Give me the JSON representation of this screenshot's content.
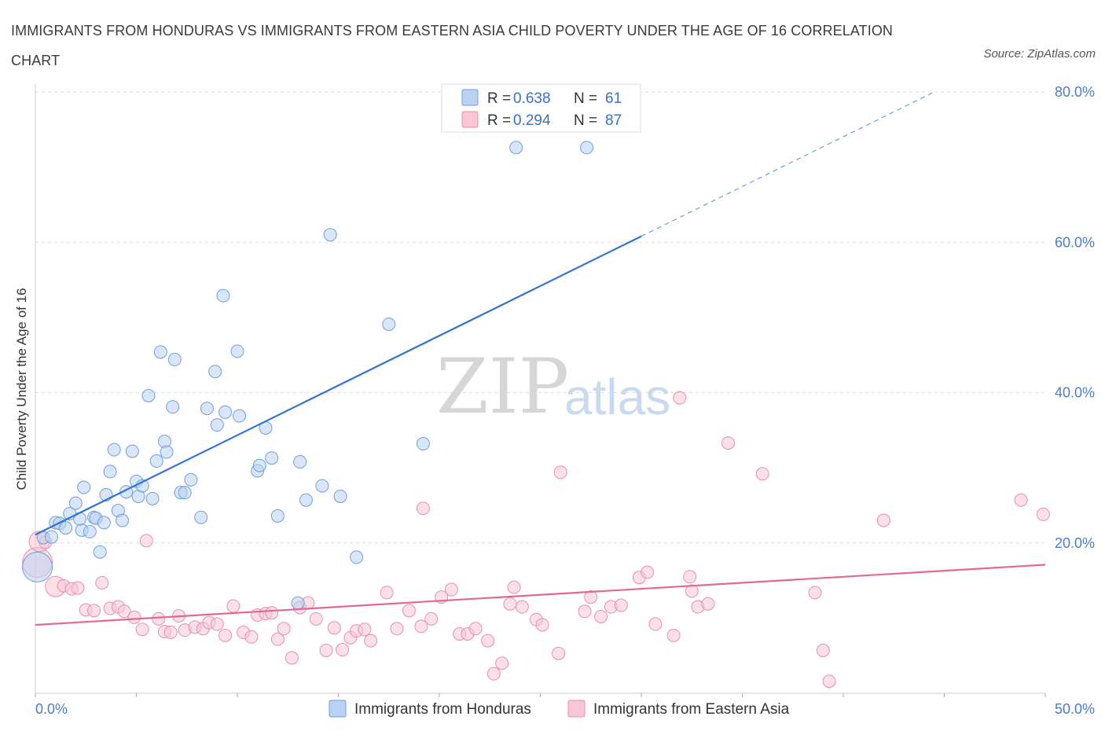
{
  "title": "IMMIGRANTS FROM HONDURAS VS IMMIGRANTS FROM EASTERN ASIA CHILD POVERTY UNDER THE AGE OF 16 CORRELATION CHART",
  "source": "Source: ZipAtlas.com",
  "watermark": {
    "zip": "ZIP",
    "atlas": "atlas"
  },
  "legend": {
    "r_label": "R =",
    "n_label": "N =",
    "rows": [
      {
        "r": "0.638",
        "n": "61"
      },
      {
        "r": "0.294",
        "n": "87"
      }
    ]
  },
  "colors": {
    "honduras_fill": "#b9d2f3",
    "honduras_stroke": "#6f9fdc",
    "honduras_line": "#2f74cf",
    "asia_fill": "#f8c6d5",
    "asia_stroke": "#e88fab",
    "asia_line": "#e06a93",
    "grid": "#dddddd",
    "tick_label": "#4a7cc9"
  },
  "chart_data": {
    "type": "scatter",
    "xlabel": "",
    "ylabel": "Child Poverty Under the Age of 16",
    "xlim": [
      0,
      50
    ],
    "ylim": [
      0,
      80
    ],
    "x_tick_labels": [
      {
        "value": 0,
        "label": "0.0%"
      },
      {
        "value": 50,
        "label": "50.0%"
      }
    ],
    "y_tick_labels": [
      {
        "value": 20,
        "label": "20.0%"
      },
      {
        "value": 40,
        "label": "40.0%"
      },
      {
        "value": 60,
        "label": "60.0%"
      },
      {
        "value": 80,
        "label": "80.0%"
      }
    ],
    "grid": "horizontal dashed",
    "legend_placement": "top-center",
    "series": [
      {
        "name": "Immigrants from Honduras",
        "r": 0.638,
        "n": 61,
        "trend": {
          "x0": 0,
          "y0": 21.1,
          "x1": 30,
          "y1": 60.8,
          "dash_to_x": 44.5,
          "dash_to_y": 80
        },
        "points": [
          [
            0.1,
            16.8,
            3
          ],
          [
            0.4,
            20.7,
            1
          ],
          [
            0.8,
            20.8,
            1
          ],
          [
            1.0,
            22.7,
            1
          ],
          [
            1.2,
            22.6,
            1
          ],
          [
            1.5,
            22.0,
            1
          ],
          [
            1.7,
            23.9,
            1
          ],
          [
            2.0,
            25.3,
            1
          ],
          [
            2.3,
            21.7,
            1
          ],
          [
            2.4,
            27.4,
            1
          ],
          [
            2.7,
            21.5,
            1
          ],
          [
            2.9,
            23.4,
            1
          ],
          [
            3.0,
            23.3,
            1
          ],
          [
            3.2,
            18.8,
            1
          ],
          [
            3.5,
            26.4,
            1
          ],
          [
            3.7,
            29.5,
            1
          ],
          [
            3.9,
            32.4,
            1
          ],
          [
            4.1,
            24.3,
            1
          ],
          [
            4.3,
            23.0,
            1
          ],
          [
            4.5,
            26.8,
            1
          ],
          [
            4.8,
            32.2,
            1
          ],
          [
            5.0,
            28.2,
            1
          ],
          [
            5.1,
            26.2,
            1
          ],
          [
            5.3,
            27.6,
            1
          ],
          [
            5.6,
            39.6,
            1
          ],
          [
            5.8,
            25.9,
            1
          ],
          [
            6.0,
            30.9,
            1
          ],
          [
            6.2,
            45.4,
            1
          ],
          [
            6.4,
            33.5,
            1
          ],
          [
            6.5,
            32.1,
            1
          ],
          [
            6.8,
            38.1,
            1
          ],
          [
            6.9,
            44.4,
            1
          ],
          [
            7.2,
            26.7,
            1
          ],
          [
            7.4,
            26.7,
            1
          ],
          [
            7.7,
            28.4,
            1
          ],
          [
            8.2,
            23.4,
            1
          ],
          [
            8.5,
            37.9,
            1
          ],
          [
            8.9,
            42.8,
            1
          ],
          [
            9.0,
            35.7,
            1
          ],
          [
            9.3,
            52.9,
            1
          ],
          [
            9.4,
            37.4,
            1
          ],
          [
            10.0,
            45.5,
            1
          ],
          [
            10.1,
            36.9,
            1
          ],
          [
            11.4,
            35.3,
            1
          ],
          [
            11.0,
            29.6,
            1
          ],
          [
            11.1,
            30.3,
            1
          ],
          [
            11.7,
            31.3,
            1
          ],
          [
            12.0,
            23.6,
            1
          ],
          [
            13.0,
            12.0,
            1
          ],
          [
            13.1,
            30.8,
            1
          ],
          [
            13.4,
            25.7,
            1
          ],
          [
            14.2,
            27.6,
            1
          ],
          [
            14.6,
            61.0,
            1
          ],
          [
            15.1,
            26.2,
            1
          ],
          [
            15.9,
            18.1,
            1
          ],
          [
            17.5,
            49.1,
            1
          ],
          [
            19.2,
            33.2,
            1
          ],
          [
            23.8,
            72.6,
            1
          ],
          [
            27.3,
            72.6,
            1
          ],
          [
            3.4,
            22.7,
            1
          ],
          [
            2.2,
            23.2,
            1
          ]
        ]
      },
      {
        "name": "Immigrants from Eastern Asia",
        "r": 0.294,
        "n": 87,
        "trend": {
          "x0": 0,
          "y0": 9.1,
          "x1": 50,
          "y1": 17.1
        },
        "points": [
          [
            0.1,
            17.4,
            3
          ],
          [
            0.2,
            20.2,
            2
          ],
          [
            0.5,
            20.1,
            1
          ],
          [
            1.0,
            14.2,
            2
          ],
          [
            1.4,
            14.3,
            1
          ],
          [
            1.8,
            13.9,
            1
          ],
          [
            2.1,
            14.0,
            1
          ],
          [
            2.5,
            11.1,
            1
          ],
          [
            2.9,
            11.0,
            1
          ],
          [
            3.3,
            14.7,
            1
          ],
          [
            3.7,
            11.3,
            1
          ],
          [
            4.1,
            11.5,
            1
          ],
          [
            4.4,
            10.9,
            1
          ],
          [
            4.9,
            10.1,
            1
          ],
          [
            5.3,
            8.5,
            1
          ],
          [
            5.5,
            20.3,
            1
          ],
          [
            6.1,
            9.9,
            1
          ],
          [
            6.4,
            8.2,
            1
          ],
          [
            6.7,
            8.1,
            1
          ],
          [
            7.1,
            10.3,
            1
          ],
          [
            7.4,
            8.4,
            1
          ],
          [
            7.9,
            8.8,
            1
          ],
          [
            8.3,
            8.6,
            1
          ],
          [
            8.6,
            9.4,
            1
          ],
          [
            9.0,
            9.2,
            1
          ],
          [
            9.4,
            7.7,
            1
          ],
          [
            9.8,
            11.6,
            1
          ],
          [
            10.3,
            8.1,
            1
          ],
          [
            10.7,
            7.5,
            1
          ],
          [
            11.0,
            10.4,
            1
          ],
          [
            11.4,
            10.6,
            1
          ],
          [
            11.7,
            10.7,
            1
          ],
          [
            12.0,
            7.2,
            1
          ],
          [
            12.3,
            8.6,
            1
          ],
          [
            12.7,
            4.7,
            1
          ],
          [
            13.1,
            11.4,
            1
          ],
          [
            13.5,
            12.0,
            1
          ],
          [
            13.9,
            9.9,
            1
          ],
          [
            14.4,
            5.7,
            1
          ],
          [
            14.8,
            8.7,
            1
          ],
          [
            15.2,
            5.8,
            1
          ],
          [
            15.6,
            7.4,
            1
          ],
          [
            15.9,
            8.3,
            1
          ],
          [
            16.3,
            8.5,
            1
          ],
          [
            16.6,
            7.0,
            1
          ],
          [
            17.4,
            13.4,
            1
          ],
          [
            17.9,
            8.6,
            1
          ],
          [
            18.5,
            11.0,
            1
          ],
          [
            19.1,
            8.9,
            1
          ],
          [
            19.6,
            9.9,
            1
          ],
          [
            20.1,
            12.8,
            1
          ],
          [
            20.6,
            13.8,
            1
          ],
          [
            21.0,
            7.9,
            1
          ],
          [
            21.4,
            7.9,
            1
          ],
          [
            21.8,
            8.6,
            1
          ],
          [
            22.4,
            7.0,
            1
          ],
          [
            22.7,
            2.6,
            1
          ],
          [
            23.1,
            4.0,
            1
          ],
          [
            23.5,
            11.9,
            1
          ],
          [
            23.7,
            14.1,
            1
          ],
          [
            24.1,
            11.5,
            1
          ],
          [
            24.8,
            9.8,
            1
          ],
          [
            25.1,
            9.1,
            1
          ],
          [
            25.9,
            5.3,
            1
          ],
          [
            26.0,
            29.4,
            1
          ],
          [
            19.2,
            24.6,
            1
          ],
          [
            27.2,
            10.9,
            1
          ],
          [
            27.5,
            12.8,
            1
          ],
          [
            28.0,
            10.2,
            1
          ],
          [
            28.5,
            11.5,
            1
          ],
          [
            29.0,
            11.7,
            1
          ],
          [
            29.9,
            15.4,
            1
          ],
          [
            30.3,
            16.1,
            1
          ],
          [
            30.7,
            9.2,
            1
          ],
          [
            31.6,
            7.7,
            1
          ],
          [
            31.9,
            39.3,
            1
          ],
          [
            32.4,
            15.5,
            1
          ],
          [
            32.5,
            13.6,
            1
          ],
          [
            32.8,
            11.5,
            1
          ],
          [
            33.3,
            11.9,
            1
          ],
          [
            34.3,
            33.3,
            1
          ],
          [
            36.0,
            29.2,
            1
          ],
          [
            38.6,
            13.4,
            1
          ],
          [
            39.0,
            5.7,
            1
          ],
          [
            39.3,
            1.6,
            1
          ],
          [
            42.0,
            23.0,
            1
          ],
          [
            48.8,
            25.7,
            1
          ],
          [
            49.9,
            23.8,
            1
          ]
        ]
      }
    ]
  }
}
